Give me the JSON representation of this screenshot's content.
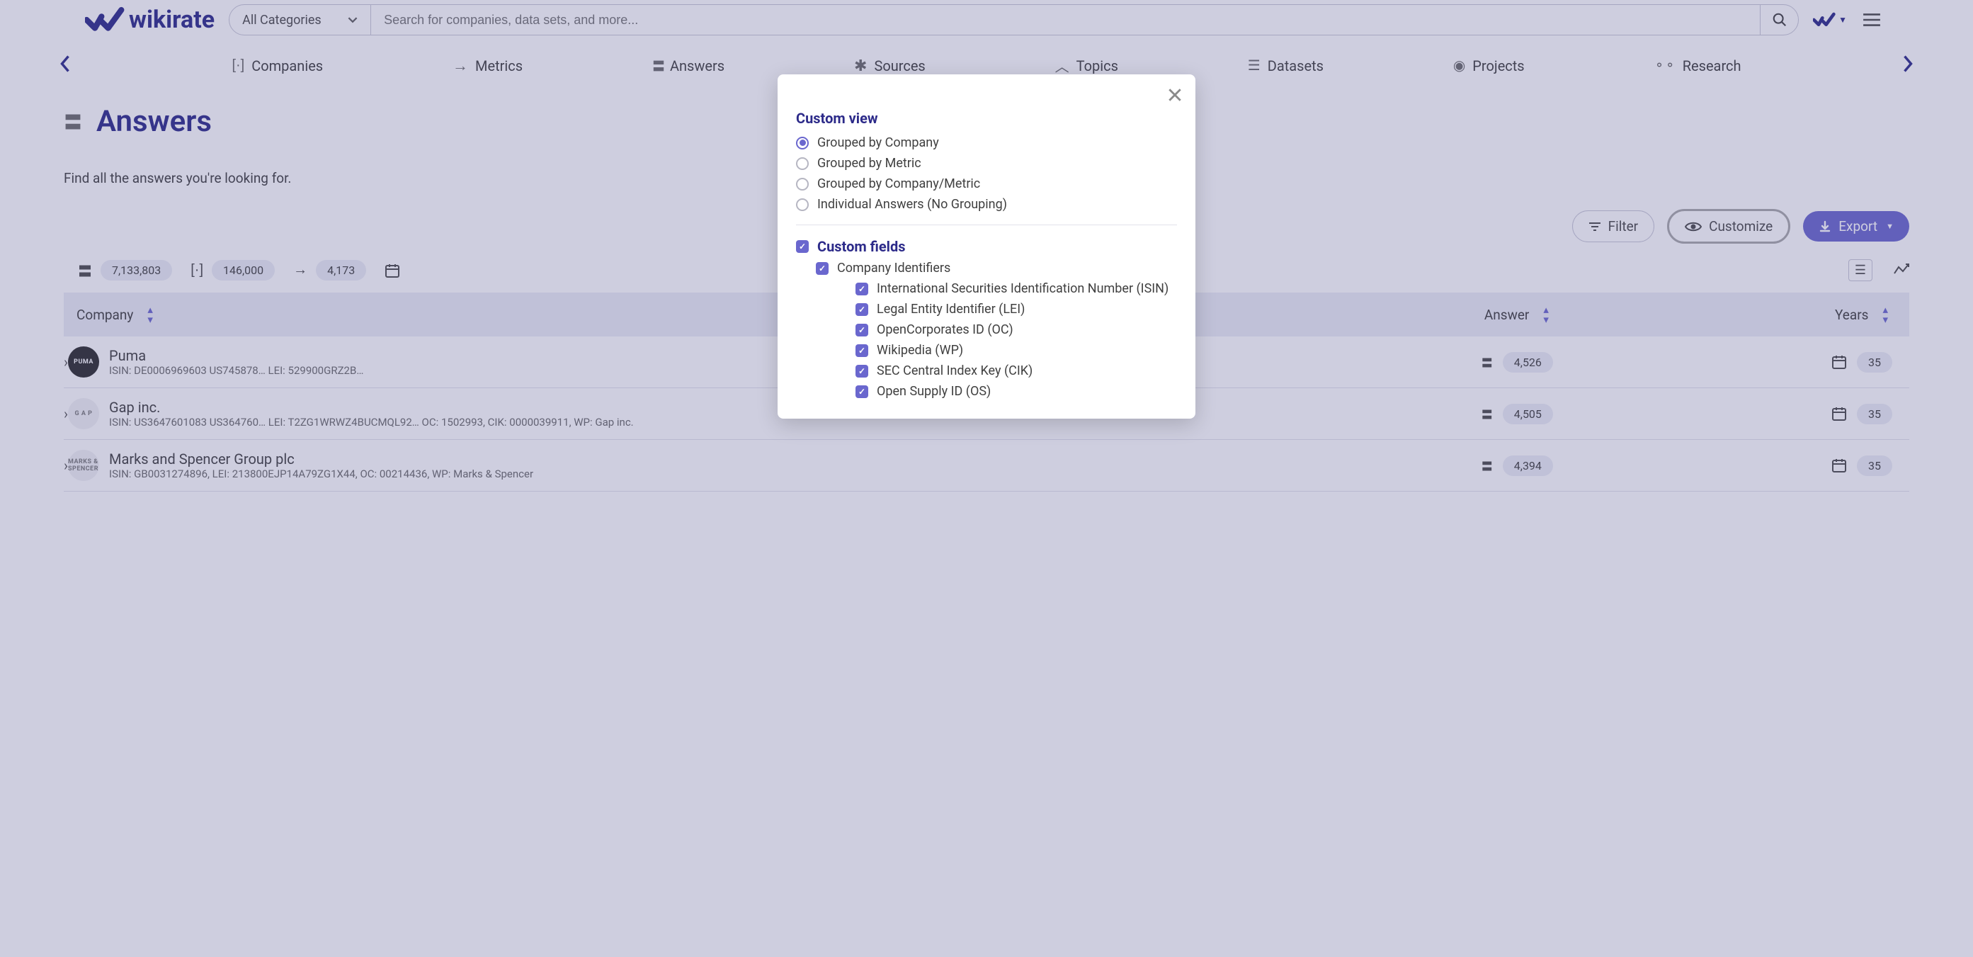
{
  "colors": {
    "brand": "#2c2a89",
    "accent": "#6a67ce",
    "text": "#404040",
    "muted": "#6b6b6b",
    "chipBg": "#eceef5"
  },
  "header": {
    "brand": "wikirate",
    "categorySelector": "All Categories",
    "searchPlaceholder": "Search for companies, data sets, and more..."
  },
  "nav": {
    "tabs": [
      {
        "label": "Companies"
      },
      {
        "label": "Metrics"
      },
      {
        "label": "Answers"
      },
      {
        "label": "Sources"
      },
      {
        "label": "Topics"
      },
      {
        "label": "Datasets"
      },
      {
        "label": "Projects"
      },
      {
        "label": "Research"
      }
    ]
  },
  "page": {
    "title": "Answers",
    "subtitle": "Find all the answers you're looking for."
  },
  "actions": {
    "filter": "Filter",
    "customize": "Customize",
    "export": "Export"
  },
  "stats": {
    "answers": "7,133,803",
    "companies": "146,000",
    "metrics": "4,173"
  },
  "table": {
    "columns": {
      "company": "Company",
      "answers": "Answer",
      "years": "Years"
    },
    "rows": [
      {
        "name": "Puma",
        "logoText": "PUMA",
        "logoStyle": "dark",
        "ids": "ISIN: DE0006969603 US745878…   LEI: 529900GRZ2B…",
        "answers": "4,526",
        "years": "35"
      },
      {
        "name": "Gap inc.",
        "logoText": "G A P",
        "logoStyle": "light",
        "ids": "ISIN: US3647601083 US364760…   LEI: T2ZG1WRWZ4BUCMQL92…   OC: 1502993, CIK: 0000039911, WP: Gap inc.",
        "answers": "4,505",
        "years": "35"
      },
      {
        "name": "Marks and Spencer Group plc",
        "logoText": "MARKS & SPENCER",
        "logoStyle": "light",
        "ids": "ISIN: GB0031274896, LEI: 213800EJP14A79ZG1X44, OC: 00214436, WP: Marks & Spencer",
        "answers": "4,394",
        "years": "35"
      }
    ]
  },
  "modal": {
    "title1": "Custom view",
    "radios": [
      {
        "label": "Grouped by Company",
        "checked": true
      },
      {
        "label": "Grouped by Metric",
        "checked": false
      },
      {
        "label": "Grouped by Company/Metric",
        "checked": false
      },
      {
        "label": "Individual Answers (No Grouping)",
        "checked": false
      }
    ],
    "title2": "Custom fields",
    "fieldsGroup": {
      "label": "Company Identifiers",
      "checked": true
    },
    "fields": [
      {
        "label": "International Securities Identification Number (ISIN)",
        "checked": true
      },
      {
        "label": "Legal Entity Identifier (LEI)",
        "checked": true
      },
      {
        "label": "OpenCorporates ID (OC)",
        "checked": true
      },
      {
        "label": "Wikipedia (WP)",
        "checked": true
      },
      {
        "label": "SEC Central Index Key (CIK)",
        "checked": true
      },
      {
        "label": "Open Supply ID (OS)",
        "checked": true
      }
    ]
  }
}
